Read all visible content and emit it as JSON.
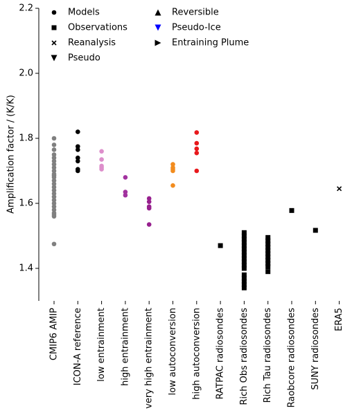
{
  "chart_data": {
    "type": "strip",
    "ylabel": "Amplification factor / (K/K)",
    "ylim": [
      1.3,
      2.2
    ],
    "yticks": [
      1.4,
      1.6,
      1.8,
      {
        "value": 2,
        "label": "2.0"
      },
      2.2
    ],
    "categories": [
      "CMIP6 AMIP",
      "ICON-A reference",
      "low entrainment",
      "high entrainment",
      "very high entrainment",
      "low autoconversion",
      "high autoconversion",
      "RATPAC radiosondes",
      "Rich Obs radiosondes",
      "Rich Tau radiosondes",
      "Raobcore radiosondes",
      "SUNY radiosondes",
      "ERA5"
    ],
    "markers": [
      "circle",
      "circle",
      "circle",
      "circle",
      "circle",
      "circle",
      "circle",
      "square",
      "square",
      "square",
      "square",
      "square",
      "x"
    ],
    "colors": [
      "#808080",
      "#000000",
      "#dd8fcb",
      "#a2329f",
      "#97208e",
      "#f28c1e",
      "#e8191c",
      "#000000",
      "#000000",
      "#000000",
      "#000000",
      "#000000",
      "#000000"
    ],
    "values": [
      [
        1.8,
        1.78,
        1.765,
        1.75,
        1.74,
        1.73,
        1.72,
        1.71,
        1.7,
        1.69,
        1.685,
        1.68,
        1.67,
        1.66,
        1.65,
        1.64,
        1.63,
        1.62,
        1.61,
        1.6,
        1.59,
        1.58,
        1.57,
        1.565,
        1.56,
        1.475
      ],
      [
        1.82,
        1.775,
        1.765,
        1.74,
        1.73,
        1.705,
        1.7
      ],
      [
        1.76,
        1.735,
        1.715,
        1.71,
        1.705
      ],
      [
        1.68,
        1.635,
        1.625
      ],
      [
        1.615,
        1.605,
        1.59,
        1.585,
        1.535
      ],
      [
        1.72,
        1.71,
        1.705,
        1.7,
        1.655
      ],
      [
        1.818,
        1.785,
        1.768,
        1.755,
        1.7
      ],
      [
        1.47
      ],
      [
        1.51,
        1.5,
        1.49,
        1.48,
        1.47,
        1.46,
        1.45,
        1.44,
        1.43,
        1.42,
        1.41,
        1.4,
        1.38,
        1.37,
        1.36,
        1.35,
        1.34
      ],
      [
        1.495,
        1.485,
        1.475,
        1.465,
        1.455,
        1.445,
        1.435,
        1.425,
        1.415,
        1.405,
        1.39
      ],
      [
        1.578
      ],
      [
        1.517
      ],
      [
        1.645
      ]
    ],
    "legend": [
      {
        "name": "Models",
        "marker": "circle",
        "color": "#000000"
      },
      {
        "name": "Observations",
        "marker": "square",
        "color": "#000000"
      },
      {
        "name": "Reanalysis",
        "marker": "x",
        "color": "#000000"
      },
      {
        "name": "Pseudo",
        "marker": "down",
        "color": "#000000"
      },
      {
        "name": "Reversible",
        "marker": "up",
        "color": "#000000"
      },
      {
        "name": "Pseudo-Ice",
        "marker": "down",
        "color": "#0000ff"
      },
      {
        "name": "Entraining Plume",
        "marker": "right",
        "color": "#000000"
      }
    ]
  }
}
